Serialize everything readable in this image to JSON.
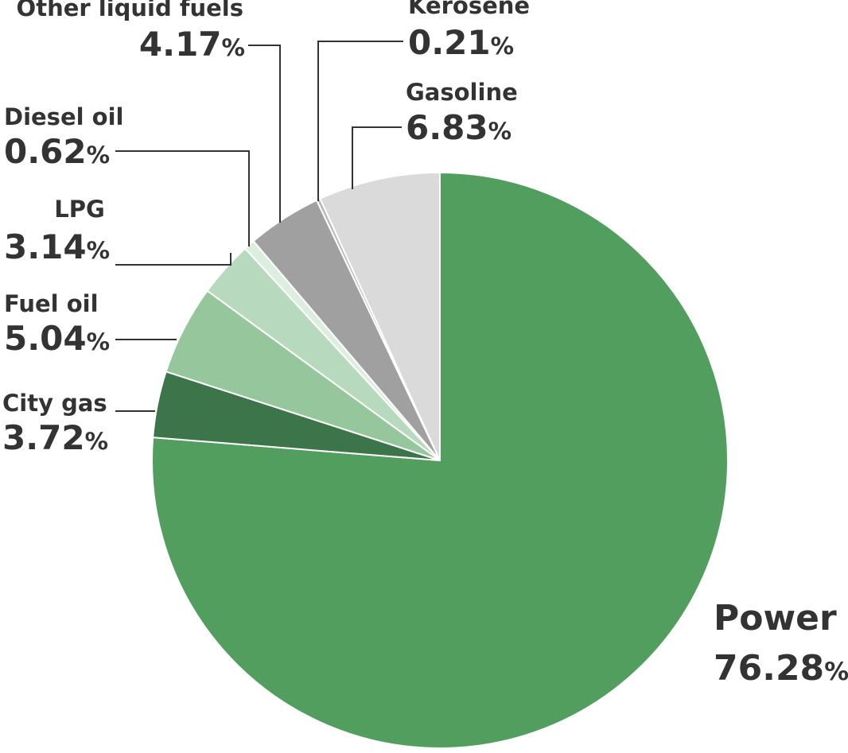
{
  "chart_data": {
    "type": "pie",
    "categories": [
      "Power",
      "City gas",
      "Fuel oil",
      "LPG",
      "Diesel oil",
      "Other liquid fuels",
      "Kerosene",
      "Gasoline"
    ],
    "values": [
      76.28,
      3.72,
      5.04,
      3.14,
      0.62,
      4.17,
      0.21,
      6.83
    ],
    "value_labels": [
      "76.28%",
      "3.72%",
      "5.04%",
      "3.14%",
      "0.62%",
      "4.17%",
      "0.21%",
      "6.83%"
    ],
    "colors": [
      "#529e5f",
      "#3b7549",
      "#96c79c",
      "#b7d9bd",
      "#dcefdf",
      "#a0a0a0",
      "#b8b8b8",
      "#dadada"
    ]
  }
}
